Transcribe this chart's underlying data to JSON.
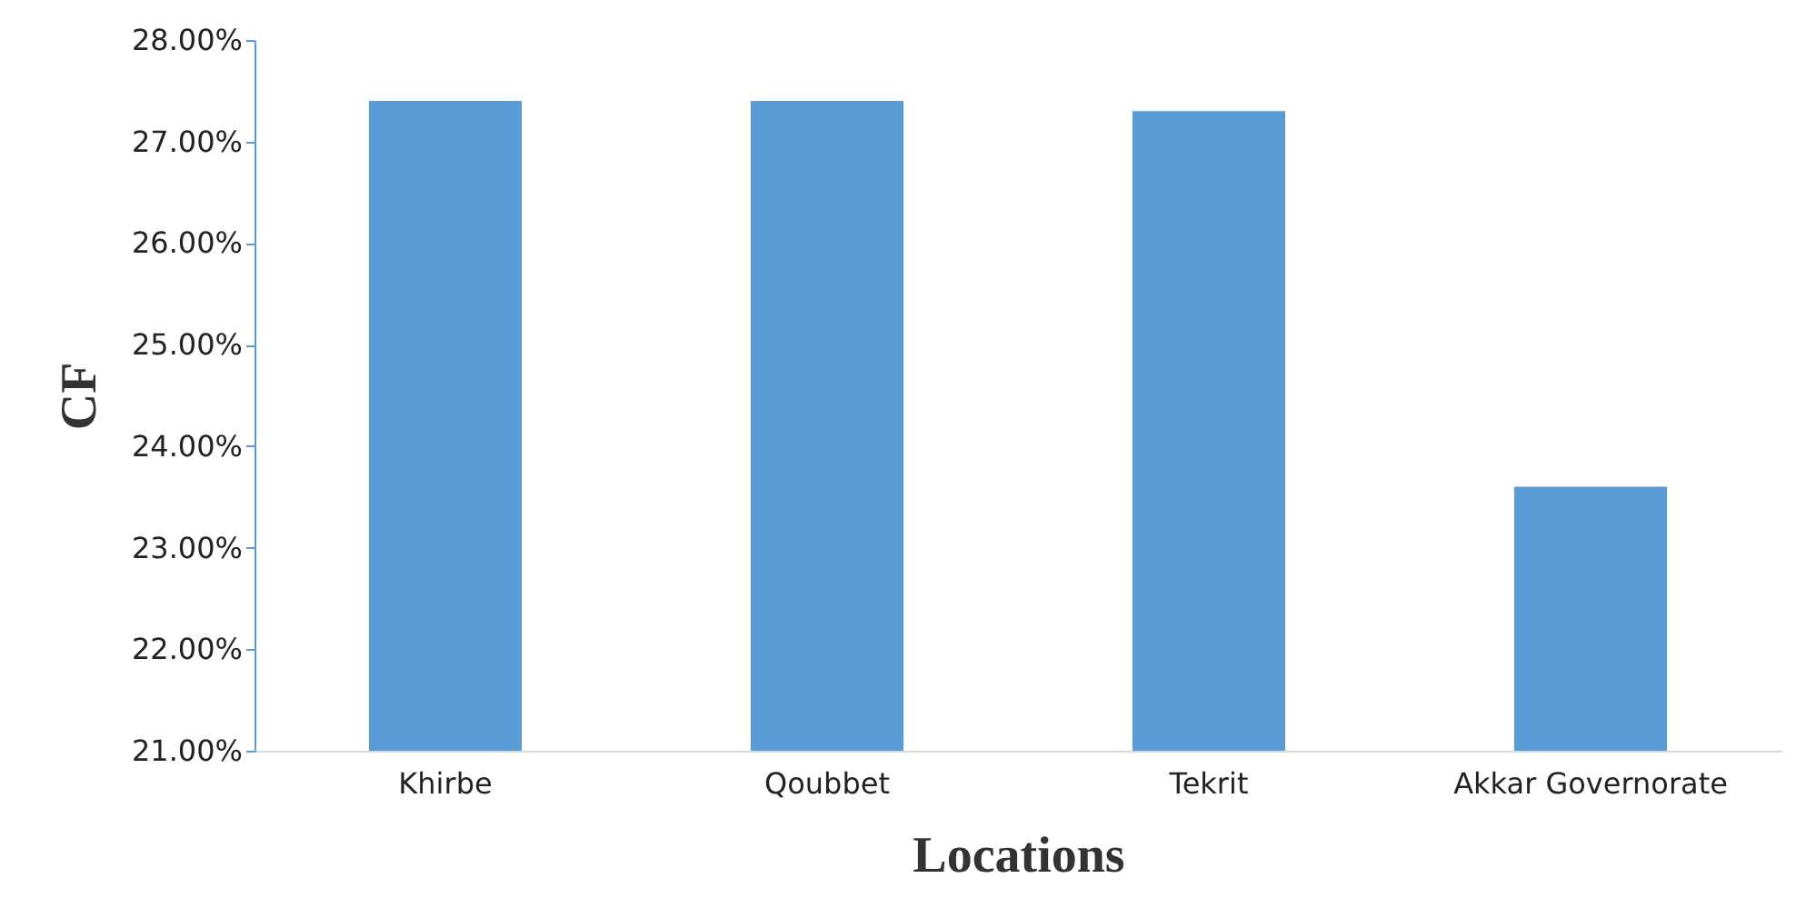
{
  "chart_data": {
    "type": "bar",
    "xlabel": "Locations",
    "ylabel": "CF",
    "categories": [
      "Khirbe",
      "Qoubbet",
      "Tekrit",
      "Akkar Governorate"
    ],
    "values": [
      27.4,
      27.4,
      27.3,
      23.6
    ],
    "color": "#5b9bd5",
    "ylim": [
      21,
      28
    ],
    "yticks": [
      {
        "value": 21,
        "label": "21.00%"
      },
      {
        "value": 22,
        "label": "22.00%"
      },
      {
        "value": 23,
        "label": "23.00%"
      },
      {
        "value": 24,
        "label": "24.00%"
      },
      {
        "value": 25,
        "label": "25.00%"
      },
      {
        "value": 26,
        "label": "26.00%"
      },
      {
        "value": 27,
        "label": "27.00%"
      },
      {
        "value": 28,
        "label": "28.00%"
      }
    ],
    "grid": false,
    "legend": false
  }
}
